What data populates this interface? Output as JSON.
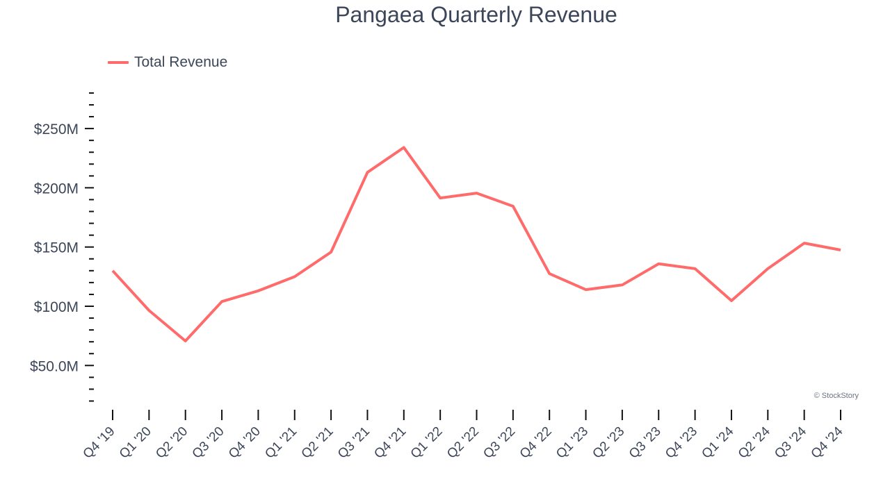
{
  "chart_data": {
    "type": "line",
    "title": "Pangaea Quarterly Revenue",
    "xlabel": "",
    "ylabel": "",
    "categories": [
      "Q4 '19",
      "Q1 '20",
      "Q2 '20",
      "Q3 '20",
      "Q4 '20",
      "Q1 '21",
      "Q2 '21",
      "Q3 '21",
      "Q4 '21",
      "Q1 '22",
      "Q2 '22",
      "Q3 '22",
      "Q4 '22",
      "Q1 '23",
      "Q2 '23",
      "Q3 '23",
      "Q4 '23",
      "Q1 '24",
      "Q2 '24",
      "Q3 '24",
      "Q4 '24"
    ],
    "series": [
      {
        "name": "Total Revenue",
        "color": "#ff6b6b",
        "values": [
          130,
          96.5,
          70.7,
          104,
          113,
          125,
          145.7,
          213,
          234,
          191.4,
          195.5,
          184.4,
          127.5,
          114,
          118,
          135.8,
          131.7,
          104.7,
          131.7,
          153.3,
          147.5
        ]
      }
    ],
    "yticks": [
      50,
      100,
      150,
      200,
      250
    ],
    "ytick_labels": [
      "$50.0M",
      "$100M",
      "$150M",
      "$200M",
      "$250M"
    ],
    "ylim": [
      20,
      280
    ],
    "grid": false,
    "legend_position": "top-left",
    "units": "USD millions"
  },
  "legend": {
    "label": "Total Revenue"
  },
  "credit": "© StockStory"
}
